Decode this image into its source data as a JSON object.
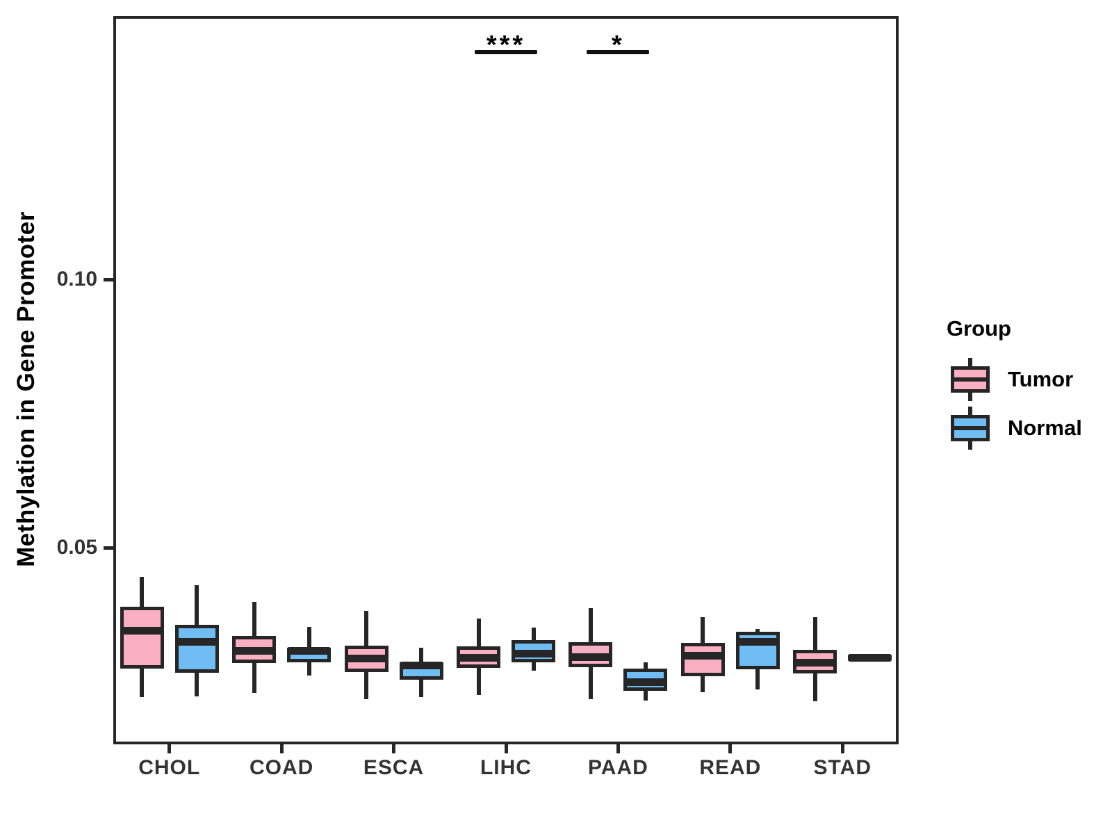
{
  "chart_data": {
    "type": "boxplot",
    "title": "",
    "xlabel": "",
    "ylabel": "Methylation in Gene Promoter",
    "categories": [
      "CHOL",
      "COAD",
      "ESCA",
      "LIHC",
      "PAAD",
      "READ",
      "STAD"
    ],
    "ylim": [
      0.013,
      0.149
    ],
    "y_ticks": [
      {
        "value": 0.05,
        "label": "0.05"
      },
      {
        "value": 0.1,
        "label": "0.10"
      }
    ],
    "grid": false,
    "legend_position": "right",
    "legend_title": "Group",
    "series": [
      {
        "name": "Tumor",
        "color": "#FBAFC2",
        "boxes": [
          {
            "min": 0.0222,
            "q1": 0.0275,
            "median": 0.0345,
            "q3": 0.039,
            "max": 0.0446
          },
          {
            "min": 0.0229,
            "q1": 0.0285,
            "median": 0.0308,
            "q3": 0.0336,
            "max": 0.0399
          },
          {
            "min": 0.0217,
            "q1": 0.0268,
            "median": 0.0294,
            "q3": 0.0318,
            "max": 0.0382
          },
          {
            "min": 0.0226,
            "q1": 0.0276,
            "median": 0.0295,
            "q3": 0.0316,
            "max": 0.0368
          },
          {
            "min": 0.0217,
            "q1": 0.0277,
            "median": 0.0296,
            "q3": 0.0324,
            "max": 0.0387
          },
          {
            "min": 0.0231,
            "q1": 0.0261,
            "median": 0.0298,
            "q3": 0.0323,
            "max": 0.0371
          },
          {
            "min": 0.0214,
            "q1": 0.0266,
            "median": 0.0286,
            "q3": 0.031,
            "max": 0.0371
          }
        ]
      },
      {
        "name": "Normal",
        "color": "#6FBDF2",
        "boxes": [
          {
            "min": 0.0223,
            "q1": 0.0267,
            "median": 0.0325,
            "q3": 0.0356,
            "max": 0.043
          },
          {
            "min": 0.0262,
            "q1": 0.0286,
            "median": 0.0307,
            "q3": 0.0314,
            "max": 0.0352
          },
          {
            "min": 0.0222,
            "q1": 0.0254,
            "median": 0.028,
            "q3": 0.0286,
            "max": 0.0314
          },
          {
            "min": 0.0271,
            "q1": 0.0286,
            "median": 0.0302,
            "q3": 0.0328,
            "max": 0.0351
          },
          {
            "min": 0.0215,
            "q1": 0.0233,
            "median": 0.025,
            "q3": 0.0275,
            "max": 0.0286
          },
          {
            "min": 0.0236,
            "q1": 0.0273,
            "median": 0.0324,
            "q3": 0.0343,
            "max": 0.0348
          },
          {
            "min": 0.0295,
            "q1": 0.0295,
            "median": 0.0295,
            "q3": 0.0295,
            "max": 0.0295
          }
        ]
      }
    ],
    "annotations": [
      {
        "category": "LIHC",
        "label": "***"
      },
      {
        "category": "PAAD",
        "label": "*"
      }
    ],
    "stroke_color": "#262626"
  },
  "legend": {
    "title": "Group",
    "items": [
      {
        "label": "Tumor",
        "color": "#FBAFC2"
      },
      {
        "label": "Normal",
        "color": "#6FBDF2"
      }
    ]
  }
}
